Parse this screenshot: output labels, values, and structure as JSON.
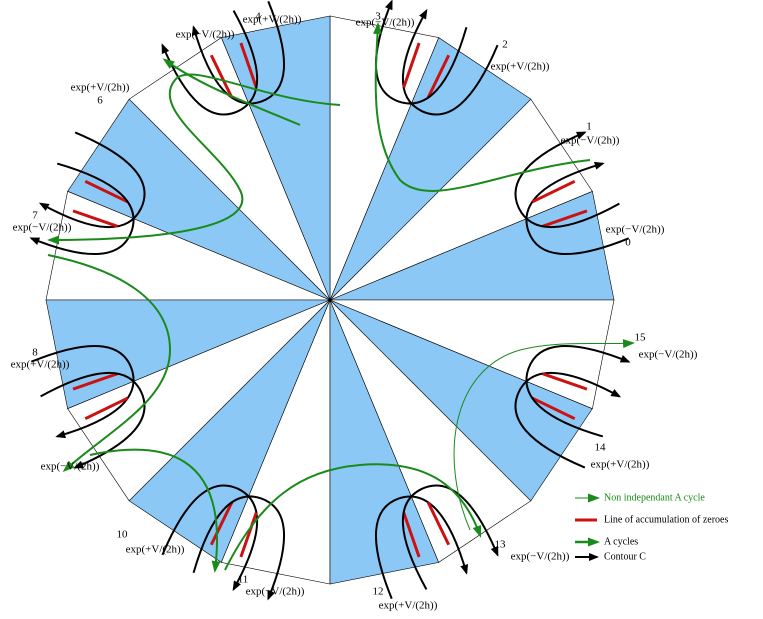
{
  "sectors": [
    {
      "number": "0",
      "weight": "exp(−V/(2h))"
    },
    {
      "number": "1",
      "weight": "exp(−V/(2h))"
    },
    {
      "number": "2",
      "weight": "exp(+V/(2h))"
    },
    {
      "number": "3",
      "weight": "exp(−V/(2h))"
    },
    {
      "number": "4",
      "weight": "exp(+V/(2h))"
    },
    {
      "weight": "exp(−V/(2h))"
    },
    {
      "number": "6",
      "weight": "exp(+V/(2h))"
    },
    {
      "number": "7",
      "weight": "exp(−V/(2h))"
    },
    {
      "number": "8",
      "weight": "exp(+V/(2h))"
    },
    {
      "weight": "exp(−V/(2h))"
    },
    {
      "number": "10",
      "weight": "exp(+V/(2h))"
    },
    {
      "number": "11",
      "weight": "exp(−V/(2h))"
    },
    {
      "number": "12",
      "weight": "exp(+V/(2h))"
    },
    {
      "number": "13",
      "weight": "exp(−V/(2h))"
    },
    {
      "number": "14",
      "weight": "exp(+V/(2h))"
    },
    {
      "number": "15",
      "weight": "exp(−V/(2h))"
    }
  ],
  "legend": [
    "Non independant A cycle",
    "Line of accumulation of zeroes",
    "A cycles",
    "Contour C"
  ]
}
